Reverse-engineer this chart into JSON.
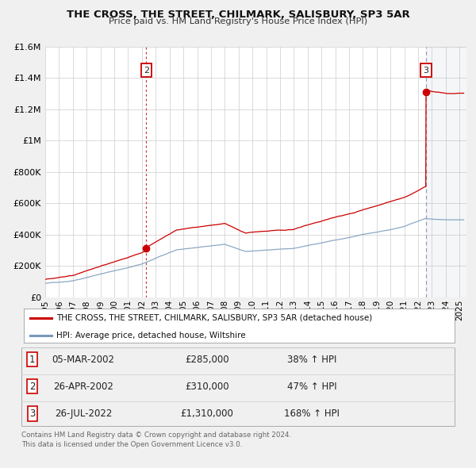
{
  "title": "THE CROSS, THE STREET, CHILMARK, SALISBURY, SP3 5AR",
  "subtitle": "Price paid vs. HM Land Registry's House Price Index (HPI)",
  "ylim": [
    0,
    1600000
  ],
  "xlim_start": 1995.0,
  "xlim_end": 2025.5,
  "yticks": [
    0,
    200000,
    400000,
    600000,
    800000,
    1000000,
    1200000,
    1400000,
    1600000
  ],
  "ytick_labels": [
    "£0",
    "£200K",
    "£400K",
    "£600K",
    "£800K",
    "£1M",
    "£1.2M",
    "£1.4M",
    "£1.6M"
  ],
  "background_color": "#f0f0f0",
  "plot_bg_color": "#ffffff",
  "grid_color": "#cccccc",
  "red_line_color": "#cc0000",
  "blue_line_color": "#7799bb",
  "vline1_color": "#cc3333",
  "vline2_color": "#9999bb",
  "shade_color": "#aabbcc",
  "transaction1": {
    "date": "05-MAR-2002",
    "year": 2002.17,
    "price": 285000,
    "price_str": "£285,000",
    "label": "1",
    "pct": "38%"
  },
  "transaction2": {
    "date": "26-APR-2002",
    "year": 2002.32,
    "price": 310000,
    "price_str": "£310,000",
    "label": "2",
    "pct": "47%"
  },
  "transaction3": {
    "date": "26-JUL-2022",
    "year": 2022.57,
    "price": 1310000,
    "price_str": "£1,310,000",
    "label": "3",
    "pct": "168%"
  },
  "legend_label_red": "THE CROSS, THE STREET, CHILMARK, SALISBURY, SP3 5AR (detached house)",
  "legend_label_blue": "HPI: Average price, detached house, Wiltshire",
  "footer1": "Contains HM Land Registry data © Crown copyright and database right 2024.",
  "footer2": "This data is licensed under the Open Government Licence v3.0."
}
